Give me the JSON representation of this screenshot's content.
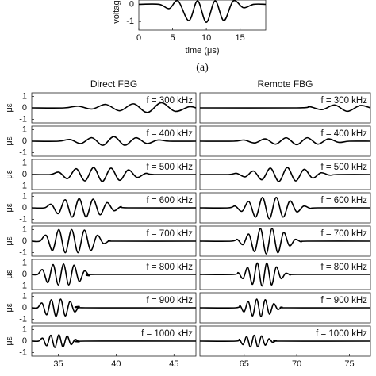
{
  "chart_data": [
    {
      "type": "line",
      "caption": "(a)",
      "xlabel": "time (μs)",
      "ylabel": "voltage",
      "x": [
        0,
        3,
        4.5,
        5.8,
        7.4,
        8.7,
        10,
        11.3,
        12.6,
        14,
        15.5,
        17,
        18.8
      ],
      "values": [
        0,
        0,
        -0.25,
        0.2,
        -0.95,
        0.2,
        -1.05,
        0.2,
        -0.95,
        0.2,
        -0.2,
        0,
        0
      ],
      "xlim": [
        0,
        18.8
      ],
      "ylim": [
        -1.5,
        0.25
      ],
      "xticks": [
        0,
        5,
        10,
        15
      ],
      "yticks": [
        -1,
        0
      ]
    },
    {
      "type": "line",
      "title": "Direct FBG",
      "annotation": "f = 300 kHz",
      "ylabel": "με",
      "x": [
        32.7,
        35.5,
        36.7,
        37.9,
        39.1,
        40.3,
        41.5,
        42.7,
        43.9,
        45.1,
        46.3,
        46.9
      ],
      "values": [
        0,
        0,
        0.15,
        -0.1,
        0.3,
        -0.25,
        0.35,
        -0.4,
        0.45,
        -0.3,
        0.1,
        0
      ],
      "xlim": [
        32.7,
        46.9
      ],
      "ylim": [
        -1.3,
        1.3
      ],
      "yticks": [
        -1,
        0,
        1
      ]
    },
    {
      "type": "line",
      "annotation": "f = 400 kHz",
      "ylabel": "με",
      "x": [
        32.7,
        35,
        36,
        36.95,
        37.9,
        38.85,
        39.8,
        40.75,
        41.7,
        42.65,
        43.6,
        44.6,
        46.9
      ],
      "values": [
        0,
        0,
        0.15,
        -0.2,
        0.3,
        -0.35,
        0.4,
        -0.35,
        0.3,
        -0.2,
        0.1,
        0,
        0
      ],
      "xlim": [
        32.7,
        46.9
      ],
      "ylim": [
        -1.3,
        1.3
      ],
      "yticks": [
        -1,
        0,
        1
      ]
    },
    {
      "type": "line",
      "annotation": "f = 500 kHz",
      "ylabel": "με",
      "x": [
        32.7,
        34.3,
        35.05,
        35.8,
        36.55,
        37.3,
        38.05,
        38.8,
        39.55,
        40.3,
        41.05,
        41.8,
        42.55,
        43.3,
        46.9
      ],
      "values": [
        0,
        0,
        0.2,
        -0.35,
        0.5,
        -0.55,
        0.6,
        -0.6,
        0.55,
        -0.5,
        0.4,
        -0.25,
        0.1,
        0,
        0
      ],
      "xlim": [
        32.7,
        46.9
      ],
      "ylim": [
        -1.3,
        1.3
      ],
      "yticks": [
        -1,
        0,
        1
      ]
    },
    {
      "type": "line",
      "annotation": "f = 600 kHz",
      "ylabel": "με",
      "x": [
        32.7,
        33.8,
        34.4,
        35,
        35.6,
        36.2,
        36.8,
        37.4,
        38,
        38.6,
        39.2,
        39.8,
        40.4,
        41,
        46.9
      ],
      "values": [
        0,
        0,
        0.3,
        -0.5,
        0.7,
        -0.8,
        0.8,
        -0.8,
        0.75,
        -0.6,
        0.45,
        -0.25,
        0.1,
        0,
        0
      ],
      "xlim": [
        32.7,
        46.9
      ],
      "ylim": [
        -1.3,
        1.3
      ],
      "yticks": [
        -1,
        0,
        1
      ]
    },
    {
      "type": "line",
      "annotation": "f = 700 kHz",
      "ylabel": "με",
      "x": [
        32.7,
        33.4,
        33.95,
        34.5,
        35.05,
        35.6,
        36.15,
        36.7,
        37.25,
        37.8,
        38.35,
        38.9,
        39.45,
        40,
        46.9
      ],
      "values": [
        0,
        0,
        0.5,
        -0.8,
        1,
        -1,
        1,
        -1,
        0.95,
        -0.8,
        0.5,
        -0.2,
        0.05,
        0,
        0
      ],
      "xlim": [
        32.7,
        46.9
      ],
      "ylim": [
        -1.3,
        1.3
      ],
      "yticks": [
        -1,
        0,
        1
      ]
    },
    {
      "type": "line",
      "annotation": "f = 800 kHz",
      "ylabel": "με",
      "x": [
        32.7,
        33.2,
        33.65,
        34.1,
        34.55,
        35,
        35.45,
        35.9,
        36.35,
        36.8,
        37.25,
        37.7,
        38.2,
        46.9
      ],
      "values": [
        0,
        0,
        0.4,
        -0.7,
        0.85,
        -0.9,
        0.9,
        -0.9,
        0.8,
        -0.6,
        0.3,
        -0.1,
        0,
        0
      ],
      "xlim": [
        32.7,
        46.9
      ],
      "ylim": [
        -1.3,
        1.3
      ],
      "yticks": [
        -1,
        0,
        1
      ]
    },
    {
      "type": "line",
      "annotation": "f = 900 kHz",
      "ylabel": "με",
      "x": [
        32.7,
        33.2,
        33.6,
        34,
        34.4,
        34.8,
        35.2,
        35.6,
        36,
        36.4,
        36.8,
        37.3,
        46.9
      ],
      "values": [
        0,
        0,
        0.4,
        -0.6,
        0.7,
        -0.75,
        0.75,
        -0.7,
        0.55,
        -0.35,
        0.1,
        0,
        0
      ],
      "xlim": [
        32.7,
        46.9
      ],
      "ylim": [
        -1.3,
        1.3
      ],
      "yticks": [
        -1,
        0,
        1
      ]
    },
    {
      "type": "line",
      "annotation": "f = 1000 kHz",
      "ylabel": "με",
      "x": [
        32.7,
        33.3,
        33.65,
        34,
        34.35,
        34.7,
        35.05,
        35.4,
        35.75,
        36.1,
        36.45,
        36.8,
        37.3,
        46.9
      ],
      "values": [
        0,
        0,
        0.25,
        -0.4,
        0.5,
        -0.55,
        0.55,
        -0.5,
        0.45,
        -0.3,
        0.15,
        -0.05,
        0,
        0
      ],
      "xlim": [
        32.7,
        46.9
      ],
      "ylim": [
        -1.3,
        1.3
      ],
      "yticks": [
        -1,
        0,
        1
      ],
      "xticks": [
        35,
        40,
        45
      ]
    },
    {
      "type": "line",
      "title": "Remote FBG",
      "annotation": "f = 300 kHz",
      "x": [
        60.8,
        70,
        71.2,
        72.4,
        73.6,
        74.8,
        76,
        77
      ],
      "values": [
        0,
        0,
        0.1,
        -0.15,
        0.25,
        -0.3,
        0.2,
        0
      ],
      "xlim": [
        60.8,
        77
      ],
      "ylim": [
        -1.3,
        1.3
      ]
    },
    {
      "type": "line",
      "annotation": "f = 400 kHz",
      "x": [
        60.8,
        64,
        65,
        66,
        67,
        68,
        69,
        70,
        71,
        72,
        73,
        74,
        75,
        77
      ],
      "values": [
        0,
        0,
        0.1,
        -0.15,
        0.2,
        -0.25,
        0.3,
        -0.3,
        0.3,
        -0.25,
        0.2,
        -0.1,
        0,
        0
      ],
      "xlim": [
        60.8,
        77
      ],
      "ylim": [
        -1.3,
        1.3
      ]
    },
    {
      "type": "line",
      "annotation": "f = 500 kHz",
      "x": [
        60.8,
        63.5,
        64.3,
        65.1,
        65.9,
        66.7,
        67.5,
        68.3,
        69.1,
        69.9,
        70.7,
        71.5,
        72.3,
        73.1,
        73.9,
        77
      ],
      "values": [
        0,
        0,
        0.1,
        -0.2,
        0.3,
        -0.45,
        0.55,
        -0.6,
        0.6,
        -0.55,
        0.45,
        -0.3,
        0.15,
        -0.05,
        0,
        0
      ],
      "xlim": [
        60.8,
        77
      ],
      "ylim": [
        -1.3,
        1.3
      ]
    },
    {
      "type": "line",
      "annotation": "f = 600 kHz",
      "x": [
        60.8,
        63.5,
        64.15,
        64.8,
        65.45,
        66.1,
        66.75,
        67.4,
        68.05,
        68.7,
        69.35,
        70,
        70.65,
        71.3,
        72,
        77
      ],
      "values": [
        0,
        0,
        0.15,
        -0.3,
        0.55,
        -0.8,
        0.9,
        -0.95,
        0.9,
        -0.8,
        0.6,
        -0.35,
        0.15,
        -0.05,
        0,
        0
      ],
      "xlim": [
        60.8,
        77
      ],
      "ylim": [
        -1.3,
        1.3
      ]
    },
    {
      "type": "line",
      "annotation": "f = 700 kHz",
      "x": [
        60.8,
        63.8,
        64.35,
        64.9,
        65.45,
        66,
        66.55,
        67.1,
        67.65,
        68.2,
        68.75,
        69.3,
        69.85,
        70.4,
        71,
        77
      ],
      "values": [
        0,
        0,
        0.15,
        -0.3,
        0.6,
        -0.9,
        1.1,
        -1.1,
        1.1,
        -1,
        0.75,
        -0.4,
        0.15,
        -0.05,
        0,
        0
      ],
      "xlim": [
        60.8,
        77
      ],
      "ylim": [
        -1.3,
        1.3
      ]
    },
    {
      "type": "line",
      "annotation": "f = 800 kHz",
      "x": [
        60.8,
        64,
        64.45,
        64.9,
        65.35,
        65.8,
        66.25,
        66.7,
        67.15,
        67.6,
        68.05,
        68.5,
        68.95,
        69.4,
        70,
        77
      ],
      "values": [
        0,
        0,
        0.15,
        -0.35,
        0.6,
        -0.85,
        1,
        -1,
        1,
        -0.9,
        0.65,
        -0.35,
        0.1,
        -0.03,
        0,
        0
      ],
      "xlim": [
        60.8,
        77
      ],
      "ylim": [
        -1.3,
        1.3
      ]
    },
    {
      "type": "line",
      "annotation": "f = 900 kHz",
      "x": [
        60.8,
        64.2,
        64.6,
        65,
        65.4,
        65.8,
        66.2,
        66.6,
        67,
        67.4,
        67.8,
        68.2,
        68.6,
        69.2,
        77
      ],
      "values": [
        0,
        0,
        0.2,
        -0.35,
        0.55,
        -0.7,
        0.75,
        -0.75,
        0.7,
        -0.55,
        0.35,
        -0.15,
        0.05,
        0,
        0
      ],
      "xlim": [
        60.8,
        77
      ],
      "ylim": [
        -1.3,
        1.3
      ]
    },
    {
      "type": "line",
      "annotation": "f = 1000 kHz",
      "x": [
        60.8,
        64.2,
        64.55,
        64.9,
        65.25,
        65.6,
        65.95,
        66.3,
        66.65,
        67,
        67.35,
        67.7,
        68.05,
        68.6,
        77
      ],
      "values": [
        0,
        0,
        0.15,
        -0.3,
        0.4,
        -0.5,
        0.5,
        -0.5,
        0.45,
        -0.35,
        0.2,
        -0.1,
        0.03,
        0,
        0
      ],
      "xlim": [
        60.8,
        77
      ],
      "ylim": [
        -1.3,
        1.3
      ],
      "xticks": [
        65,
        70,
        75
      ]
    }
  ]
}
